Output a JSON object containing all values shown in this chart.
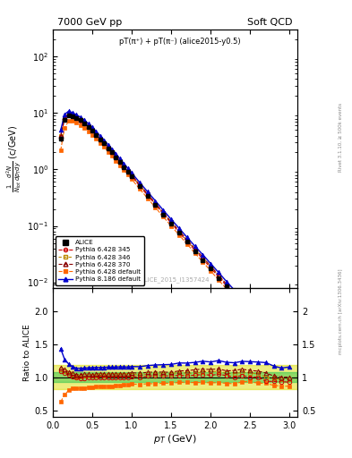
{
  "title_left": "7000 GeV pp",
  "title_right": "Soft QCD",
  "annotation": "pT(π⁺) + pT(π⁻) (alice2015-y0.5)",
  "watermark": "ALICE_2015_I1357424",
  "ylabel_main": "$\\frac{1}{N_{tot}}\\frac{d^2N}{dp_{T}dy}$ (c/GeV)",
  "ylabel_ratio": "Ratio to ALICE",
  "xlabel": "$p_T$ (GeV)",
  "xlim": [
    0,
    3.1
  ],
  "ylim_main": [
    0.008,
    300
  ],
  "ylim_ratio": [
    0.4,
    2.35
  ],
  "right_label1": "Rivet 3.1.10, ≥ 500k events",
  "right_label2": "mcplots.cern.ch [arXiv:1306.3436]",
  "colors": {
    "alice": "#000000",
    "p345": "#cc0000",
    "p346": "#bb8800",
    "p370": "#880000",
    "pdefault": "#ff6600",
    "p8default": "#0000cc"
  },
  "band_green": [
    0.92,
    1.08
  ],
  "band_yellow": [
    0.82,
    1.18
  ],
  "pt_main": [
    0.1,
    0.15,
    0.2,
    0.25,
    0.3,
    0.35,
    0.4,
    0.45,
    0.5,
    0.55,
    0.6,
    0.65,
    0.7,
    0.75,
    0.8,
    0.85,
    0.9,
    0.95,
    1.0,
    1.1,
    1.2,
    1.3,
    1.4,
    1.5,
    1.6,
    1.7,
    1.8,
    1.9,
    2.0,
    2.1,
    2.2,
    2.3,
    2.4,
    2.5,
    2.6,
    2.7,
    2.8,
    2.9,
    3.0
  ],
  "alice_y": [
    3.5,
    7.5,
    9.0,
    8.8,
    8.2,
    7.5,
    6.6,
    5.7,
    4.9,
    4.1,
    3.45,
    2.9,
    2.4,
    2.0,
    1.65,
    1.35,
    1.1,
    0.92,
    0.75,
    0.51,
    0.345,
    0.235,
    0.16,
    0.11,
    0.075,
    0.052,
    0.036,
    0.025,
    0.0175,
    0.012,
    0.0085,
    0.006,
    0.0042,
    0.003,
    0.0022,
    0.0016,
    0.0012,
    0.00088,
    0.00065
  ],
  "alice_err": [
    0.4,
    0.5,
    0.55,
    0.5,
    0.45,
    0.4,
    0.35,
    0.3,
    0.25,
    0.22,
    0.18,
    0.15,
    0.13,
    0.11,
    0.09,
    0.075,
    0.062,
    0.052,
    0.043,
    0.03,
    0.02,
    0.014,
    0.0095,
    0.0066,
    0.0045,
    0.003,
    0.0022,
    0.0015,
    0.001,
    0.0007,
    0.0005,
    0.00036,
    0.00026,
    0.00018,
    0.00013,
    0.0001,
    7e-05,
    5e-05,
    3.8e-05
  ],
  "p345_y": [
    3.8,
    8.0,
    9.3,
    8.9,
    8.1,
    7.4,
    6.5,
    5.65,
    4.9,
    4.1,
    3.45,
    2.9,
    2.4,
    2.0,
    1.65,
    1.35,
    1.1,
    0.92,
    0.76,
    0.51,
    0.35,
    0.24,
    0.163,
    0.112,
    0.077,
    0.053,
    0.037,
    0.026,
    0.018,
    0.0125,
    0.0087,
    0.006,
    0.0043,
    0.003,
    0.0022,
    0.0015,
    0.00112,
    0.00082,
    0.0006
  ],
  "p346_y": [
    3.9,
    8.2,
    9.5,
    9.1,
    8.3,
    7.6,
    6.7,
    5.8,
    5.0,
    4.2,
    3.55,
    2.98,
    2.47,
    2.06,
    1.7,
    1.4,
    1.14,
    0.95,
    0.78,
    0.53,
    0.36,
    0.247,
    0.168,
    0.116,
    0.08,
    0.055,
    0.038,
    0.027,
    0.019,
    0.013,
    0.009,
    0.0063,
    0.0045,
    0.0032,
    0.0023,
    0.0016,
    0.00117,
    0.00085,
    0.00063
  ],
  "p370_y": [
    4.0,
    8.4,
    9.7,
    9.3,
    8.5,
    7.8,
    6.9,
    5.95,
    5.1,
    4.3,
    3.62,
    3.05,
    2.52,
    2.1,
    1.73,
    1.42,
    1.16,
    0.97,
    0.8,
    0.54,
    0.37,
    0.253,
    0.172,
    0.118,
    0.082,
    0.057,
    0.04,
    0.028,
    0.0195,
    0.0135,
    0.0093,
    0.0066,
    0.0047,
    0.0033,
    0.0024,
    0.0017,
    0.00122,
    0.00088,
    0.00065
  ],
  "pdef_y": [
    2.2,
    5.5,
    7.2,
    7.3,
    6.8,
    6.2,
    5.5,
    4.8,
    4.15,
    3.5,
    2.95,
    2.5,
    2.07,
    1.73,
    1.43,
    1.18,
    0.97,
    0.81,
    0.67,
    0.455,
    0.31,
    0.212,
    0.145,
    0.1,
    0.069,
    0.048,
    0.033,
    0.023,
    0.016,
    0.011,
    0.0077,
    0.0054,
    0.0039,
    0.0028,
    0.002,
    0.00145,
    0.00105,
    0.00076,
    0.00056
  ],
  "p8def_y": [
    5.0,
    9.5,
    10.8,
    10.2,
    9.3,
    8.5,
    7.5,
    6.5,
    5.6,
    4.7,
    3.95,
    3.33,
    2.76,
    2.3,
    1.9,
    1.56,
    1.27,
    1.06,
    0.87,
    0.59,
    0.405,
    0.278,
    0.19,
    0.131,
    0.091,
    0.063,
    0.044,
    0.031,
    0.0215,
    0.015,
    0.0104,
    0.0073,
    0.0052,
    0.0037,
    0.0027,
    0.00195,
    0.0014,
    0.001,
    0.00075
  ]
}
